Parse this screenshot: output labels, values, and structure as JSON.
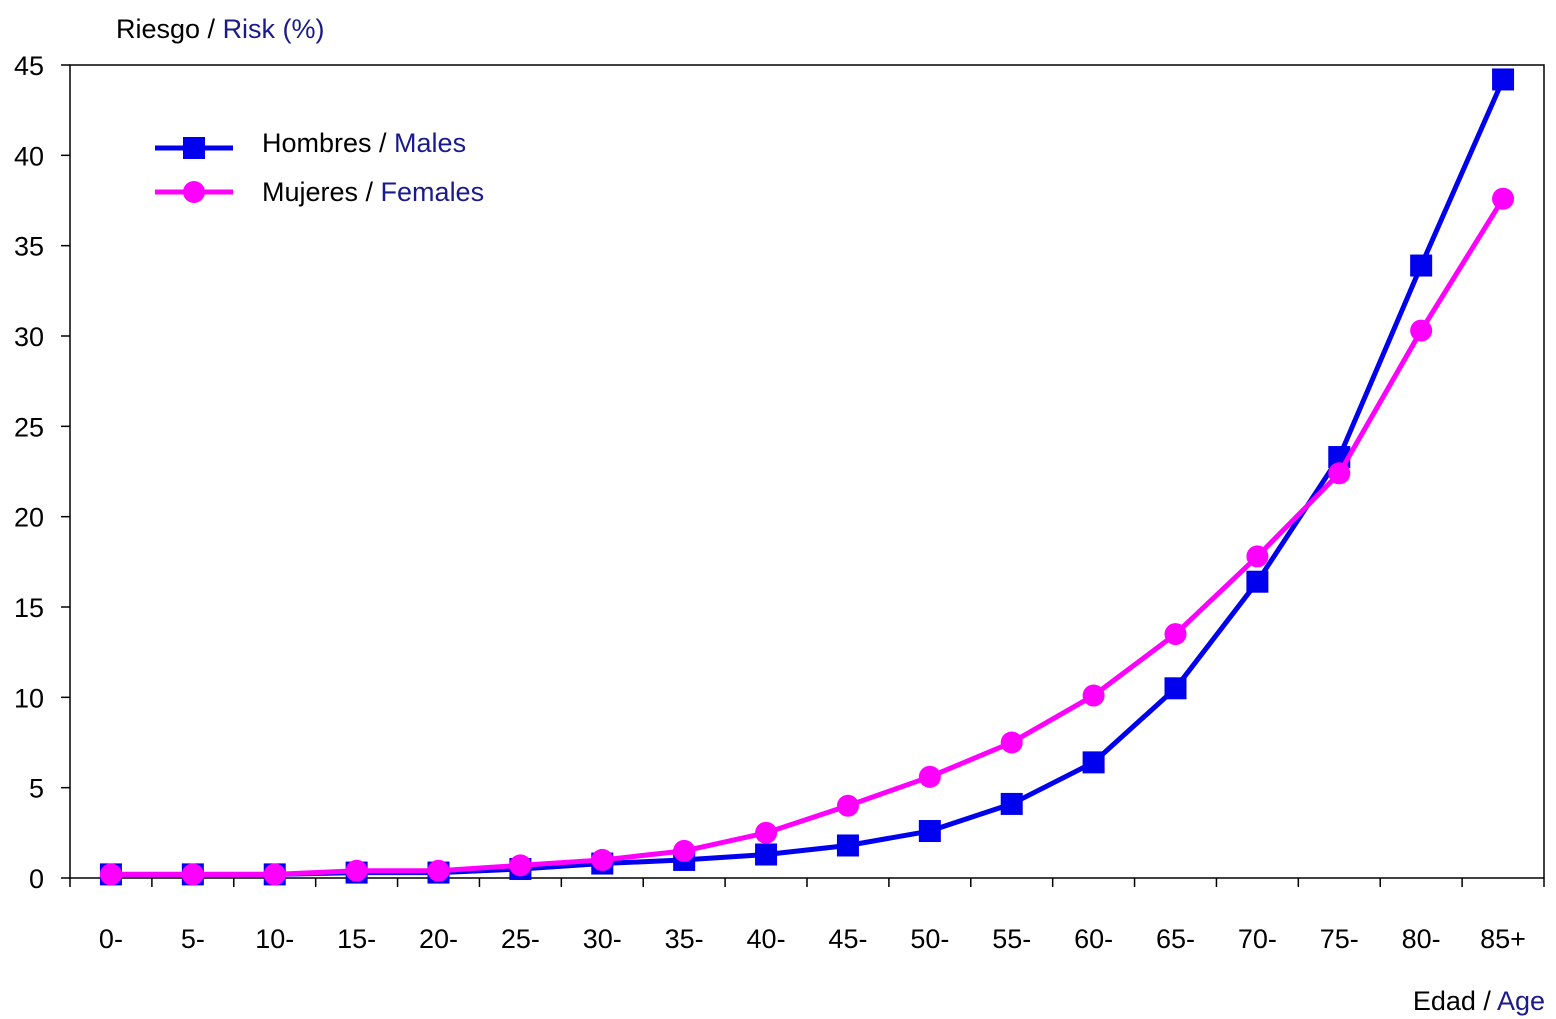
{
  "chart_data": {
    "type": "line",
    "ylabel": {
      "prefix": "Riesgo / ",
      "accent": "Risk (%)"
    },
    "xlabel": {
      "prefix": "Edad / ",
      "accent": "Age"
    },
    "categories": [
      "0-",
      "5-",
      "10-",
      "15-",
      "20-",
      "25-",
      "30-",
      "35-",
      "40-",
      "45-",
      "50-",
      "55-",
      "60-",
      "65-",
      "70-",
      "75-",
      "80-",
      "85+"
    ],
    "ylim": [
      0,
      45
    ],
    "yticks": [
      0,
      5,
      10,
      15,
      20,
      25,
      30,
      35,
      40,
      45
    ],
    "grid": false,
    "legend_position": "top-left",
    "series": [
      {
        "name_prefix": "Hombres / ",
        "name_accent": "Males",
        "color": "#0000ee",
        "marker": "square",
        "values": [
          0.2,
          0.2,
          0.2,
          0.3,
          0.3,
          0.5,
          0.8,
          1.0,
          1.3,
          1.8,
          2.6,
          4.1,
          6.4,
          10.5,
          16.4,
          23.3,
          33.9,
          44.2
        ]
      },
      {
        "name_prefix": "Mujeres / ",
        "name_accent": "Females",
        "color": "#ff00ff",
        "marker": "circle",
        "values": [
          0.2,
          0.2,
          0.2,
          0.4,
          0.4,
          0.7,
          1.0,
          1.5,
          2.5,
          4.0,
          5.6,
          7.5,
          10.1,
          13.5,
          17.8,
          22.4,
          30.3,
          37.6
        ]
      }
    ],
    "colors": {
      "text": "#000000",
      "accent_text": "#1a1a8c",
      "axis": "#000000"
    }
  }
}
